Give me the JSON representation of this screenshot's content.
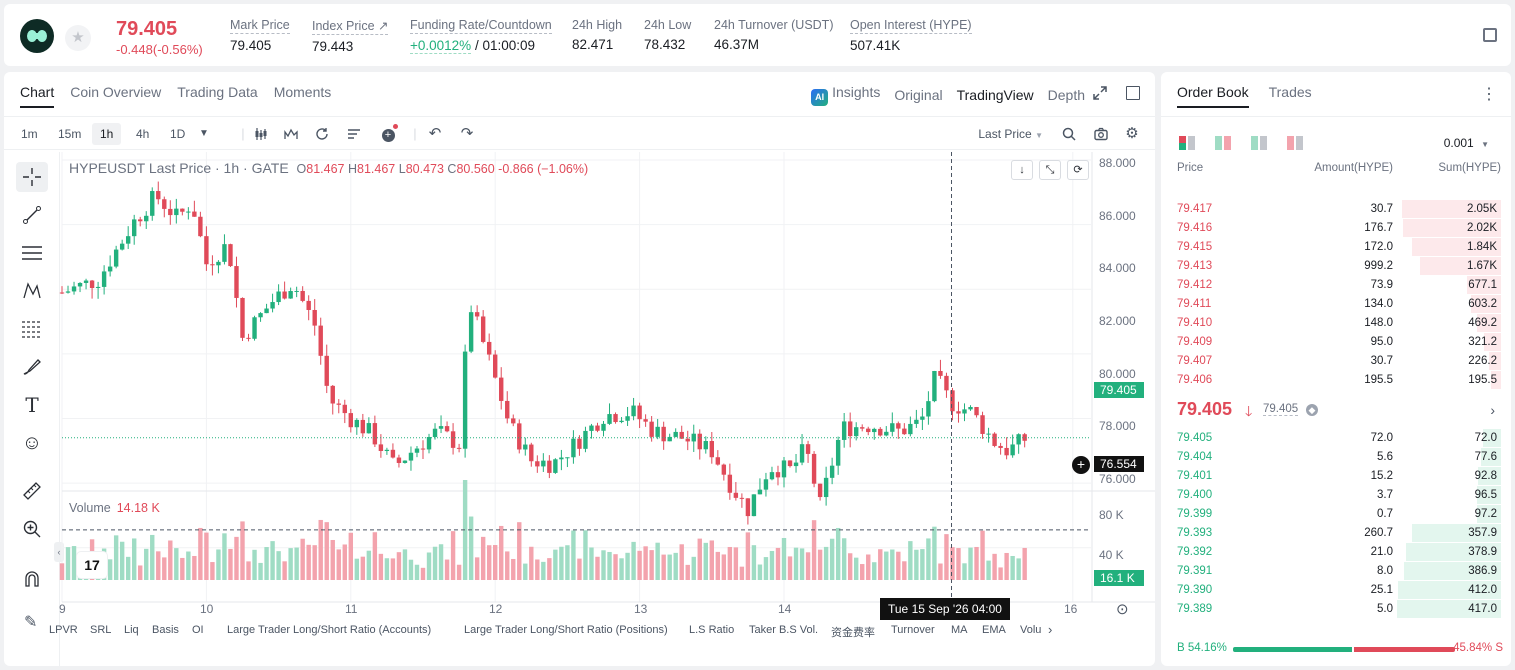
{
  "header": {
    "last_price": "79.405",
    "change": "-0.448(-0.56%)",
    "stats": [
      {
        "label": "Mark Price",
        "value": "79.405"
      },
      {
        "label": "Index Price ↗",
        "value": "79.443"
      },
      {
        "label": "Funding Rate/Countdown",
        "value_green": "+0.0012%",
        "value": " / 01:00:09"
      },
      {
        "label": "24h High",
        "value": "82.471"
      },
      {
        "label": "24h Low",
        "value": "78.432"
      },
      {
        "label": "24h Turnover (USDT)",
        "value": "46.37M"
      },
      {
        "label": "Open Interest (HYPE)",
        "value": "507.41K"
      }
    ]
  },
  "chart_panel": {
    "tabs": [
      "Chart",
      "Coin Overview",
      "Trading Data",
      "Moments"
    ],
    "view_tabs": [
      "Insights",
      "Original",
      "TradingView",
      "Depth"
    ],
    "ai_badge": "AI",
    "timeframes": [
      "1m",
      "15m",
      "1h",
      "4h",
      "1D"
    ],
    "price_source": "Last Price",
    "info_title": "HYPEUSDT Last Price · 1h · GATE",
    "ohlc": {
      "o": "81.467",
      "h": "81.467",
      "l": "80.473",
      "c": "80.560",
      "chg": "-0.866 (−1.06%)"
    },
    "volume_label": "Volume",
    "volume_value": "14.18 K",
    "tv_logo": "17",
    "cursor_time": "Tue 15 Sep '26   04:00",
    "indicators": [
      "LPVR",
      "SRL",
      "Liq",
      "Basis",
      "OI",
      "Large Trader Long/Short Ratio (Accounts)",
      "Large Trader Long/Short Ratio (Positions)",
      "L.S Ratio",
      "Taker B.S Vol.",
      "资金费率",
      "Turnover",
      "MA",
      "EMA",
      "Volu"
    ],
    "colors": {
      "up": "#22b07d",
      "down": "#e04a59",
      "vol_up": "#9fdcc4",
      "vol_down": "#f3a3ad"
    }
  },
  "chart_data": {
    "type": "candlestick",
    "symbol": "HYPEUSDT",
    "interval": "1h",
    "y_ticks": [
      "88.000",
      "86.000",
      "84.000",
      "82.000",
      "80.000",
      "78.000",
      "76.000"
    ],
    "ylim": [
      75.9,
      88.0
    ],
    "x_ticks": [
      "9",
      "10",
      "11",
      "12",
      "13",
      "14",
      "16"
    ],
    "x_tick_days": [
      9,
      10,
      11,
      12,
      13,
      14,
      16
    ],
    "current_price": "79.405",
    "crosshair_price": "76.554",
    "volume_ticks": [
      "80 K",
      "40 K"
    ],
    "volume_current": "16.1 K",
    "close_path": [
      {
        "day": 9.0,
        "price": 83.9
      },
      {
        "day": 9.25,
        "price": 84.3
      },
      {
        "day": 9.5,
        "price": 86.1
      },
      {
        "day": 9.65,
        "price": 86.9
      },
      {
        "day": 9.8,
        "price": 86.2
      },
      {
        "day": 9.9,
        "price": 86.7
      },
      {
        "day": 10.0,
        "price": 84.8
      },
      {
        "day": 10.15,
        "price": 85.4
      },
      {
        "day": 10.25,
        "price": 82.5
      },
      {
        "day": 10.45,
        "price": 83.6
      },
      {
        "day": 10.6,
        "price": 84.2
      },
      {
        "day": 10.75,
        "price": 82.9
      },
      {
        "day": 10.85,
        "price": 80.6
      },
      {
        "day": 11.0,
        "price": 80.0
      },
      {
        "day": 11.15,
        "price": 79.5
      },
      {
        "day": 11.3,
        "price": 78.5
      },
      {
        "day": 11.45,
        "price": 79.1
      },
      {
        "day": 11.6,
        "price": 79.6
      },
      {
        "day": 11.75,
        "price": 79.2
      },
      {
        "day": 11.82,
        "price": 83.6
      },
      {
        "day": 11.95,
        "price": 81.9
      },
      {
        "day": 12.1,
        "price": 79.8
      },
      {
        "day": 12.25,
        "price": 78.7
      },
      {
        "day": 12.4,
        "price": 78.6
      },
      {
        "day": 12.55,
        "price": 79.2
      },
      {
        "day": 12.75,
        "price": 80.1
      },
      {
        "day": 12.95,
        "price": 80.2
      },
      {
        "day": 13.1,
        "price": 79.6
      },
      {
        "day": 13.3,
        "price": 79.4
      },
      {
        "day": 13.5,
        "price": 79.0
      },
      {
        "day": 13.65,
        "price": 77.8
      },
      {
        "day": 13.75,
        "price": 77.2
      },
      {
        "day": 13.9,
        "price": 78.5
      },
      {
        "day": 14.05,
        "price": 78.4
      },
      {
        "day": 14.15,
        "price": 79.1
      },
      {
        "day": 14.25,
        "price": 77.3
      },
      {
        "day": 14.4,
        "price": 79.7
      },
      {
        "day": 14.6,
        "price": 79.8
      },
      {
        "day": 14.8,
        "price": 79.6
      },
      {
        "day": 14.95,
        "price": 79.9
      },
      {
        "day": 15.05,
        "price": 81.3
      },
      {
        "day": 15.15,
        "price": 80.5
      },
      {
        "day": 15.3,
        "price": 80.2
      },
      {
        "day": 15.45,
        "price": 79.3
      },
      {
        "day": 15.55,
        "price": 79.0
      },
      {
        "day": 15.68,
        "price": 79.4
      }
    ]
  },
  "order_book": {
    "tabs": [
      "Order Book",
      "Trades"
    ],
    "precision": "0.001",
    "headers": {
      "price": "Price",
      "amount": "Amount(HYPE)",
      "sum": "Sum(HYPE)"
    },
    "asks": [
      {
        "price": "79.417",
        "amount": "30.7",
        "sum": "2.05K",
        "depth": 0.95
      },
      {
        "price": "79.416",
        "amount": "176.7",
        "sum": "2.02K",
        "depth": 0.94
      },
      {
        "price": "79.415",
        "amount": "172.0",
        "sum": "1.84K",
        "depth": 0.86
      },
      {
        "price": "79.413",
        "amount": "999.2",
        "sum": "1.67K",
        "depth": 0.78
      },
      {
        "price": "79.412",
        "amount": "73.9",
        "sum": "677.1",
        "depth": 0.33
      },
      {
        "price": "79.411",
        "amount": "134.0",
        "sum": "603.2",
        "depth": 0.29
      },
      {
        "price": "79.410",
        "amount": "148.0",
        "sum": "469.2",
        "depth": 0.23
      },
      {
        "price": "79.409",
        "amount": "95.0",
        "sum": "321.2",
        "depth": 0.16
      },
      {
        "price": "79.407",
        "amount": "30.7",
        "sum": "226.2",
        "depth": 0.12
      },
      {
        "price": "79.406",
        "amount": "195.5",
        "sum": "195.5",
        "depth": 0.1
      }
    ],
    "mid_price": "79.405",
    "mid_arrow": "🡓",
    "mark_price": "79.405",
    "bids": [
      {
        "price": "79.405",
        "amount": "72.0",
        "sum": "72.0",
        "depth": 0.17
      },
      {
        "price": "79.404",
        "amount": "5.6",
        "sum": "77.6",
        "depth": 0.19
      },
      {
        "price": "79.401",
        "amount": "15.2",
        "sum": "92.8",
        "depth": 0.22
      },
      {
        "price": "79.400",
        "amount": "3.7",
        "sum": "96.5",
        "depth": 0.23
      },
      {
        "price": "79.399",
        "amount": "0.7",
        "sum": "97.2",
        "depth": 0.23
      },
      {
        "price": "79.393",
        "amount": "260.7",
        "sum": "357.9",
        "depth": 0.86
      },
      {
        "price": "79.392",
        "amount": "21.0",
        "sum": "378.9",
        "depth": 0.91
      },
      {
        "price": "79.391",
        "amount": "8.0",
        "sum": "386.9",
        "depth": 0.93
      },
      {
        "price": "79.390",
        "amount": "25.1",
        "sum": "412.0",
        "depth": 0.99
      },
      {
        "price": "79.389",
        "amount": "5.0",
        "sum": "417.0",
        "depth": 1.0
      }
    ],
    "buy_ratio": "B 54.16%",
    "sell_ratio": "45.84% S",
    "buy_fraction": 0.5416
  }
}
